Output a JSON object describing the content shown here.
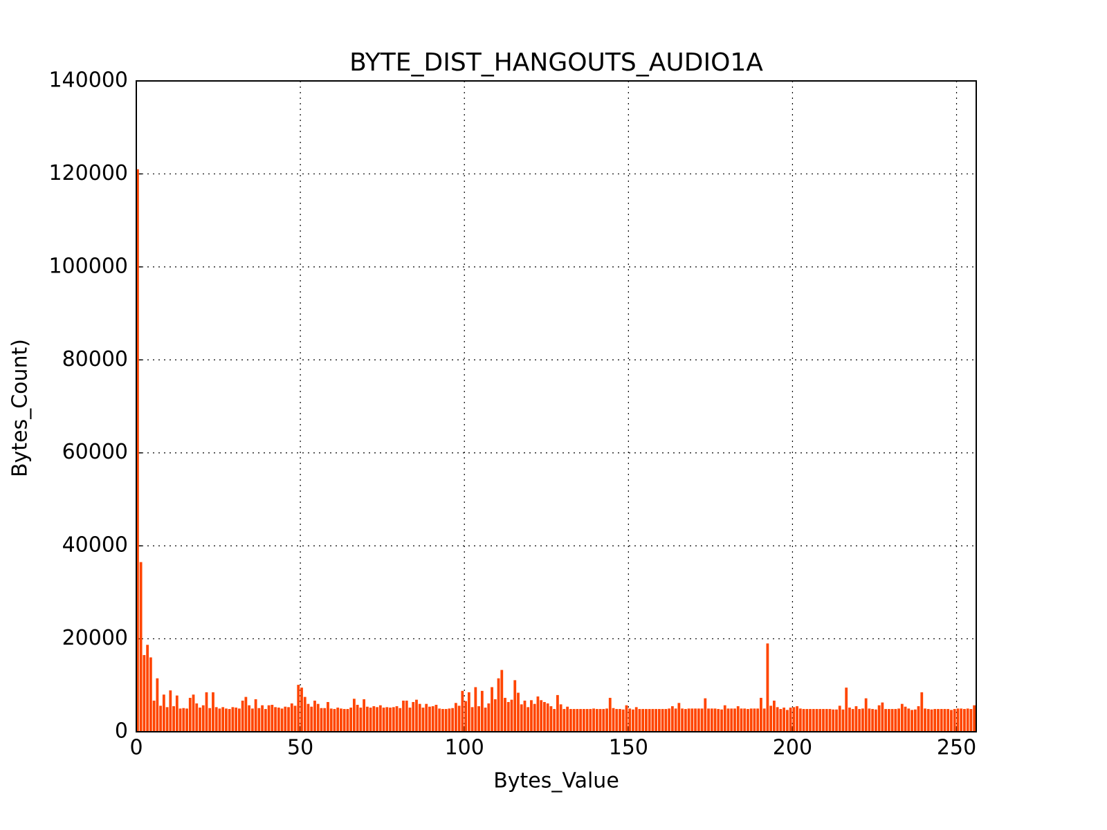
{
  "chart_data": {
    "type": "histogram",
    "title": "BYTE_DIST_HANGOUTS_AUDIO1A",
    "x_label": "Bytes_Value",
    "y_label": "Bytes_Count)",
    "bins": [
      0,
      1,
      2,
      3,
      4,
      5,
      6,
      7,
      8,
      9,
      10,
      11,
      12,
      13,
      14,
      15,
      16,
      17,
      18,
      19,
      20,
      21,
      22,
      23,
      24,
      25,
      26,
      27,
      28,
      29,
      30,
      31,
      32,
      33,
      34,
      35,
      36,
      37,
      38,
      39,
      40,
      41,
      42,
      43,
      44,
      45,
      46,
      47,
      48,
      49,
      50,
      51,
      52,
      53,
      54,
      55,
      56,
      57,
      58,
      59,
      60,
      61,
      62,
      63,
      64,
      65,
      66,
      67,
      68,
      69,
      70,
      71,
      72,
      73,
      74,
      75,
      76,
      77,
      78,
      79,
      80,
      81,
      82,
      83,
      84,
      85,
      86,
      87,
      88,
      89,
      90,
      91,
      92,
      93,
      94,
      95,
      96,
      97,
      98,
      99,
      100,
      101,
      102,
      103,
      104,
      105,
      106,
      107,
      108,
      109,
      110,
      111,
      112,
      113,
      114,
      115,
      116,
      117,
      118,
      119,
      120,
      121,
      122,
      123,
      124,
      125,
      126,
      127,
      128,
      129,
      130,
      131,
      132,
      133,
      134,
      135,
      136,
      137,
      138,
      139,
      140,
      141,
      142,
      143,
      144,
      145,
      146,
      147,
      148,
      149,
      150,
      151,
      152,
      153,
      154,
      155,
      156,
      157,
      158,
      159,
      160,
      161,
      162,
      163,
      164,
      165,
      166,
      167,
      168,
      169,
      170,
      171,
      172,
      173,
      174,
      175,
      176,
      177,
      178,
      179,
      180,
      181,
      182,
      183,
      184,
      185,
      186,
      187,
      188,
      189,
      190,
      191,
      192,
      193,
      194,
      195,
      196,
      197,
      198,
      199,
      200,
      201,
      202,
      203,
      204,
      205,
      206,
      207,
      208,
      209,
      210,
      211,
      212,
      213,
      214,
      215,
      216,
      217,
      218,
      219,
      220,
      221,
      222,
      223,
      224,
      225,
      226,
      227,
      228,
      229,
      230,
      231,
      232,
      233,
      234,
      235,
      236,
      237,
      238,
      239,
      240,
      241,
      242,
      243,
      244,
      245,
      246,
      247,
      248,
      249,
      250,
      251,
      252,
      253,
      254,
      255,
      256
    ],
    "values": [
      121000,
      36500,
      16500,
      18700,
      16000,
      6700,
      11500,
      5600,
      8000,
      5300,
      8900,
      5500,
      7800,
      5000,
      5100,
      5000,
      7300,
      8000,
      6100,
      5200,
      5700,
      8500,
      5100,
      8500,
      5300,
      5000,
      5300,
      5000,
      4900,
      5300,
      5200,
      5000,
      6700,
      7500,
      5700,
      5000,
      7000,
      5100,
      5700,
      4900,
      5700,
      5800,
      5300,
      5200,
      5000,
      5400,
      5300,
      6100,
      5600,
      10100,
      9500,
      7500,
      6000,
      5400,
      6700,
      6000,
      5100,
      5100,
      6400,
      5000,
      4900,
      5200,
      5000,
      4900,
      4900,
      5200,
      7100,
      5800,
      5200,
      7000,
      5400,
      5200,
      5500,
      5300,
      5700,
      5200,
      5300,
      5200,
      5300,
      5500,
      5100,
      6700,
      6700,
      5200,
      6400,
      6900,
      6000,
      5200,
      6000,
      5400,
      5500,
      5800,
      5000,
      4900,
      4900,
      5000,
      5100,
      6200,
      5600,
      8800,
      6600,
      8500,
      5300,
      9600,
      5500,
      8800,
      5200,
      6100,
      9600,
      7000,
      11500,
      13300,
      7300,
      6400,
      6900,
      11100,
      8400,
      5900,
      6700,
      5300,
      6800,
      6000,
      7600,
      6800,
      6400,
      6100,
      5500,
      4900,
      7900,
      5900,
      4900,
      5400,
      4900,
      4900,
      4900,
      4900,
      4900,
      4900,
      4900,
      5000,
      4900,
      4900,
      4900,
      5000,
      7300,
      5100,
      4900,
      4900,
      4800,
      5700,
      5000,
      4800,
      5300,
      4900,
      4900,
      4900,
      4900,
      4900,
      4900,
      4900,
      4900,
      4900,
      5000,
      5500,
      5000,
      6200,
      5000,
      4900,
      5000,
      5000,
      5000,
      5000,
      5000,
      7200,
      5000,
      5000,
      5000,
      4900,
      4800,
      5700,
      5000,
      5000,
      5000,
      5500,
      5000,
      5000,
      4900,
      5000,
      5000,
      5000,
      7300,
      5000,
      19000,
      5600,
      6700,
      5300,
      4900,
      5200,
      4700,
      5200,
      5300,
      5500,
      5000,
      4900,
      4900,
      4900,
      4900,
      4900,
      4900,
      4900,
      4900,
      4900,
      4800,
      4800,
      5600,
      4800,
      9500,
      5200,
      4900,
      5500,
      4900,
      5000,
      7200,
      5000,
      4900,
      4800,
      5700,
      6300,
      4900,
      4900,
      4900,
      4900,
      5000,
      6000,
      5400,
      5000,
      4700,
      4800,
      5500,
      8500,
      5000,
      4900,
      4800,
      4900,
      4900,
      4900,
      4900,
      4900,
      4700,
      4900,
      5000,
      5000,
      4900,
      5000,
      4900,
      5700
    ],
    "color": "#ff4500",
    "xlim": [
      0,
      256
    ],
    "xticks": [
      0,
      50,
      100,
      150,
      200,
      250
    ],
    "ylim": [
      0,
      140000
    ],
    "yticks": [
      0,
      20000,
      40000,
      60000,
      80000,
      100000,
      120000,
      140000
    ],
    "grid": true
  }
}
